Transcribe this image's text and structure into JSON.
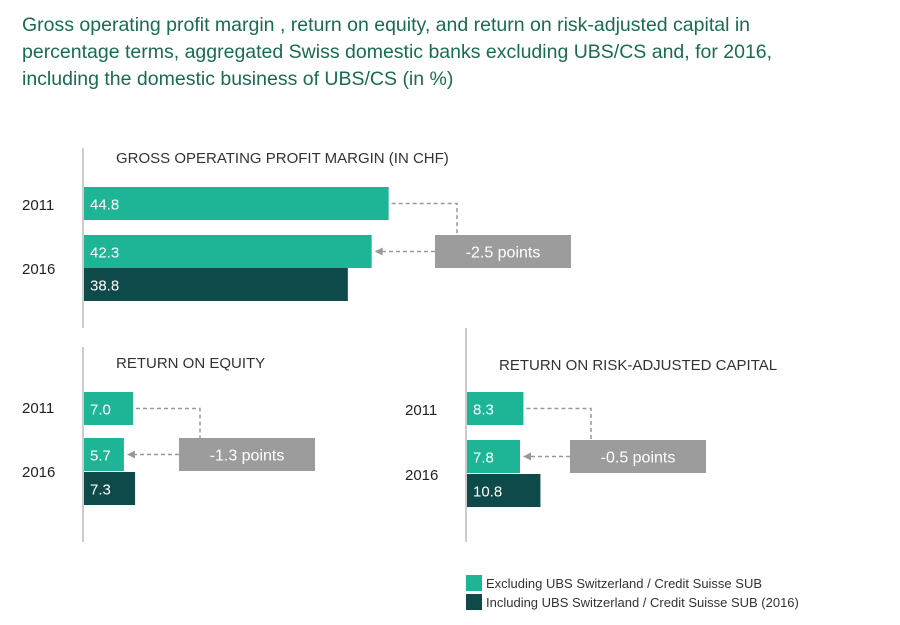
{
  "title_lines": [
    "Gross operating profit margin  , return on equity, and return on risk-adjusted capital  in",
    "percentage terms, aggregated Swiss domestic banks excluding UBS/CS and, for 2016,",
    "including the domestic business of UBS/CS  (in %)"
  ],
  "colors": {
    "excluding": "#1eb596",
    "including": "#0e4a4a",
    "delta_box": "#9c9c9c",
    "axis": "#9a9a9a",
    "title": "#1a6b52"
  },
  "legend": [
    {
      "label": "Excluding UBS Switzerland / Credit Suisse SUB",
      "color_key": "excluding"
    },
    {
      "label": "Including UBS Switzerland / Credit Suisse SUB (2016)",
      "color_key": "including"
    }
  ],
  "chart_data": [
    {
      "type": "bar",
      "orientation": "horizontal",
      "title": "GROSS OPERATING PROFIT MARGIN (IN CHF)",
      "categories": [
        "2011",
        "2016"
      ],
      "bars": [
        {
          "year": "2011",
          "series": "excluding",
          "value": 44.8,
          "label": "44.8"
        },
        {
          "year": "2016",
          "series": "excluding",
          "value": 42.3,
          "label": "42.3"
        },
        {
          "year": "2016",
          "series": "including",
          "value": 38.8,
          "label": "38.8"
        }
      ],
      "change_label": "-2.5 points"
    },
    {
      "type": "bar",
      "orientation": "horizontal",
      "title": "RETURN ON EQUITY",
      "categories": [
        "2011",
        "2016"
      ],
      "bars": [
        {
          "year": "2011",
          "series": "excluding",
          "value": 7.0,
          "label": "7.0"
        },
        {
          "year": "2016",
          "series": "excluding",
          "value": 5.7,
          "label": "5.7"
        },
        {
          "year": "2016",
          "series": "including",
          "value": 7.3,
          "label": "7.3"
        }
      ],
      "change_label": "-1.3 points"
    },
    {
      "type": "bar",
      "orientation": "horizontal",
      "title": "RETURN ON RISK-ADJUSTED CAPITAL",
      "categories": [
        "2011",
        "2016"
      ],
      "bars": [
        {
          "year": "2011",
          "series": "excluding",
          "value": 8.3,
          "label": "8.3"
        },
        {
          "year": "2016",
          "series": "excluding",
          "value": 7.8,
          "label": "7.8"
        },
        {
          "year": "2016",
          "series": "including",
          "value": 10.8,
          "label": "10.8"
        }
      ],
      "change_label": "-0.5 points"
    }
  ]
}
